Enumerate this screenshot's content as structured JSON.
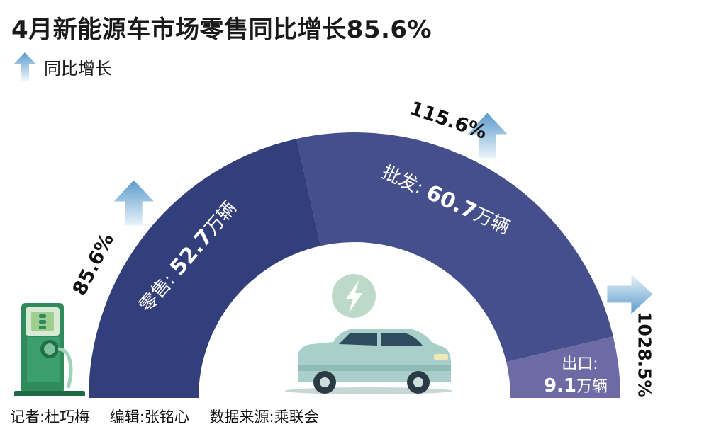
{
  "title": "4月新能源车市场零售同比增长85.6%",
  "legend": {
    "label": "同比增长",
    "icon": "up-arrow-icon"
  },
  "footer": {
    "reporter": "记者:杜巧梅",
    "editor": "编辑:张铭心",
    "source": "数据来源:乘联会"
  },
  "colors": {
    "retail": "#323f7b",
    "wholesale": "#454f8c",
    "export": "#6e6aa6",
    "arrow_top": "#5b9ccc",
    "arrow_bottom": "#e8f2fa",
    "charger": "#2f8a5c",
    "car": "#a8cfc9"
  },
  "chart_data": {
    "type": "pie",
    "unit": "万辆",
    "segments": [
      {
        "name": "零售",
        "value": 52.7,
        "value_text": "52.7",
        "growth": "85.6%"
      },
      {
        "name": "批发",
        "value": 60.7,
        "value_text": "60.7",
        "growth": "115.6%"
      },
      {
        "name": "出口",
        "value": 9.1,
        "value_text": "9.1",
        "growth": "1028.5%"
      }
    ]
  },
  "icons": [
    "ev-charger-icon",
    "electric-car-icon",
    "lightning-bolt-icon"
  ]
}
